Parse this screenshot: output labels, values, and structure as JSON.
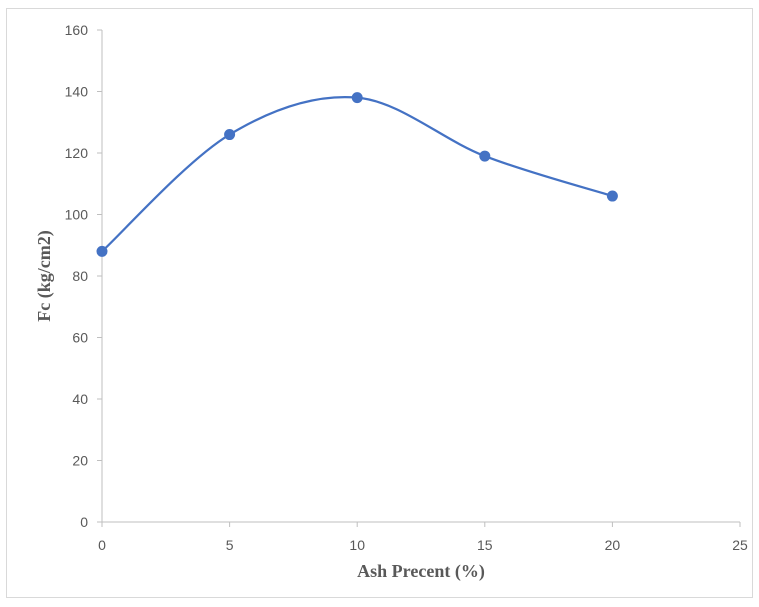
{
  "chart_data": {
    "type": "line",
    "title": "",
    "xlabel": "Ash Precent (%)",
    "ylabel": "Fc (kg/cm2)",
    "x": [
      0,
      5,
      10,
      15,
      20
    ],
    "series": [
      {
        "values": [
          88,
          126,
          138,
          119,
          106
        ]
      }
    ],
    "xlim": [
      0,
      25
    ],
    "ylim": [
      0,
      160
    ],
    "x_ticks": [
      "0",
      "5",
      "10",
      "15",
      "20",
      "25"
    ],
    "y_ticks": [
      "0",
      "20",
      "40",
      "60",
      "80",
      "100",
      "120",
      "140",
      "160"
    ],
    "smoothed": true,
    "markers": true,
    "grid": false,
    "legend": "none",
    "colors": {
      "series": "#4472c4",
      "axis": "#bfbfbf",
      "text": "#595959"
    }
  }
}
